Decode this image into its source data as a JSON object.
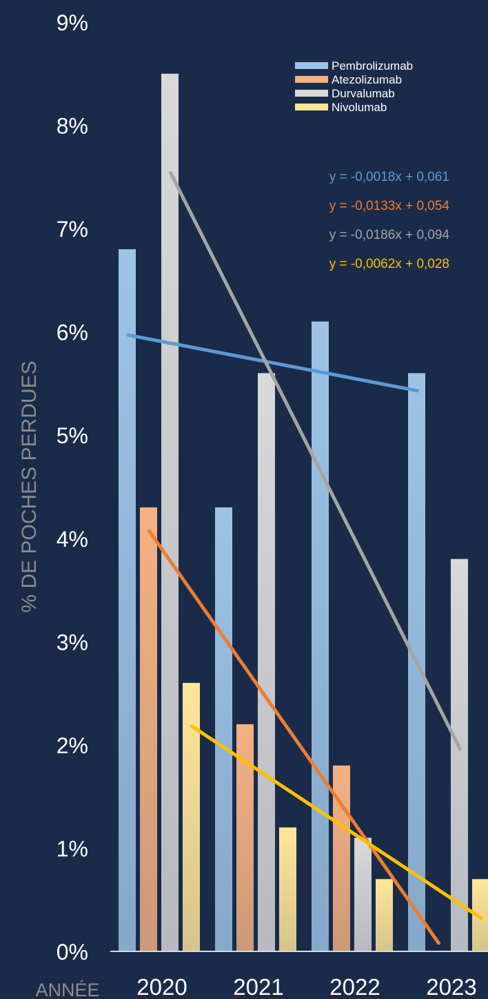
{
  "chart_data": {
    "type": "bar",
    "ylabel": "% DE POCHES PERDUES",
    "xlabel": "ANNÉE",
    "categories": [
      "2020",
      "2021",
      "2022",
      "2023"
    ],
    "ylim": [
      0,
      9
    ],
    "yticks": [
      "0%",
      "1%",
      "2%",
      "3%",
      "4%",
      "5%",
      "6%",
      "7%",
      "8%",
      "9%"
    ],
    "grid": false,
    "legend_position": "top-right",
    "series": [
      {
        "name": "Pembrolizumab",
        "values": [
          6.8,
          4.3,
          6.1,
          5.6
        ],
        "color": "#9dc3e6",
        "trend_color": "#5b9bd5",
        "trend_equation": "y = -0,0018x + 0,061"
      },
      {
        "name": "Atezolizumab",
        "values": [
          4.3,
          2.2,
          1.8,
          null
        ],
        "color": "#f4b183",
        "trend_color": "#ed7d31",
        "trend_equation": "y = -0,0133x + 0,054"
      },
      {
        "name": "Durvalumab",
        "values": [
          8.5,
          5.6,
          1.1,
          3.8
        ],
        "color": "#d9d9d9",
        "trend_color": "#a5a5a5",
        "trend_equation": "y = -0,0186x + 0,094"
      },
      {
        "name": "Nivolumab",
        "values": [
          2.6,
          1.2,
          0.7,
          0.7
        ],
        "color": "#ffe699",
        "trend_color": "#ffc000",
        "trend_equation": "y = -0,0062x + 0,028"
      }
    ],
    "trendlines": [
      {
        "series": "Pembrolizumab",
        "start": 5.97,
        "end": 5.43
      },
      {
        "series": "Atezolizumab",
        "start": 4.07,
        "end": 0.08
      },
      {
        "series": "Durvalumab",
        "start": 7.54,
        "end": 1.96
      },
      {
        "series": "Nivolumab",
        "start": 2.18,
        "end": 0.32
      }
    ]
  }
}
